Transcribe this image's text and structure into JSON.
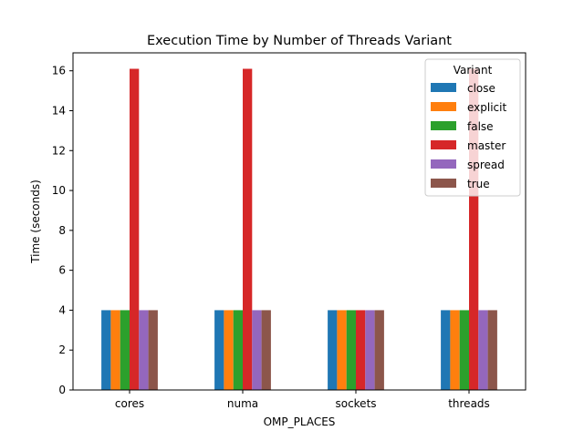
{
  "chart_data": {
    "type": "bar",
    "title": "Execution Time by Number of Threads Variant",
    "xlabel": "OMP_PLACES",
    "ylabel": "Time (seconds)",
    "categories": [
      "cores",
      "numa",
      "sockets",
      "threads"
    ],
    "ylim": [
      0,
      16.9
    ],
    "yticks": [
      0,
      2,
      4,
      6,
      8,
      10,
      12,
      14,
      16
    ],
    "grid": false,
    "legend": {
      "title": "Variant",
      "position": "top-right"
    },
    "series": [
      {
        "name": "close",
        "color": "#1f77b4",
        "values": [
          4.0,
          4.0,
          4.0,
          4.0
        ]
      },
      {
        "name": "explicit",
        "color": "#ff7f0e",
        "values": [
          4.0,
          4.0,
          4.0,
          4.0
        ]
      },
      {
        "name": "false",
        "color": "#2ca02c",
        "values": [
          4.0,
          4.0,
          4.0,
          4.0
        ]
      },
      {
        "name": "master",
        "color": "#d62728",
        "values": [
          16.1,
          16.1,
          4.0,
          16.1
        ]
      },
      {
        "name": "spread",
        "color": "#9467bd",
        "values": [
          4.0,
          4.0,
          4.0,
          4.0
        ]
      },
      {
        "name": "true",
        "color": "#8c564b",
        "values": [
          4.0,
          4.0,
          4.0,
          4.0
        ]
      }
    ]
  }
}
